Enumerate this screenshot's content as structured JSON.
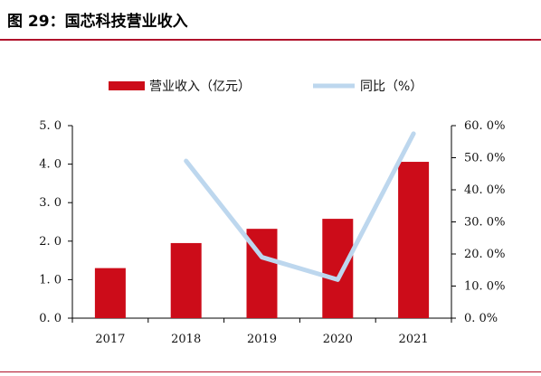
{
  "figure": {
    "title": "图 29：国芯科技营业收入"
  },
  "colors": {
    "bar": "#cc0c19",
    "line": "#bdd7ee",
    "rule": "#b0122a",
    "axis": "#000000"
  },
  "chart_data": {
    "type": "bar",
    "categories": [
      "2017",
      "2018",
      "2019",
      "2020",
      "2021"
    ],
    "series": [
      {
        "name": "营业收入（亿元）",
        "type": "bar",
        "axis": "left",
        "values": [
          1.3,
          1.95,
          2.32,
          2.58,
          4.06
        ]
      },
      {
        "name": "同比（%）",
        "type": "line",
        "axis": "right",
        "values": [
          null,
          49.0,
          19.0,
          12.0,
          57.5
        ]
      }
    ],
    "y_left": {
      "ylim": [
        0,
        5
      ],
      "ticks": [
        0,
        1,
        2,
        3,
        4,
        5
      ],
      "tick_labels": [
        "0. 0",
        "1. 0",
        "2. 0",
        "3. 0",
        "4. 0",
        "5. 0"
      ]
    },
    "y_right": {
      "ylim": [
        0,
        60
      ],
      "ticks": [
        0,
        10,
        20,
        30,
        40,
        50,
        60
      ],
      "tick_labels": [
        "0. 0%",
        "10. 0%",
        "20. 0%",
        "30. 0%",
        "40. 0%",
        "50. 0%",
        "60. 0%"
      ]
    },
    "legend_position": "top",
    "grid": false
  }
}
